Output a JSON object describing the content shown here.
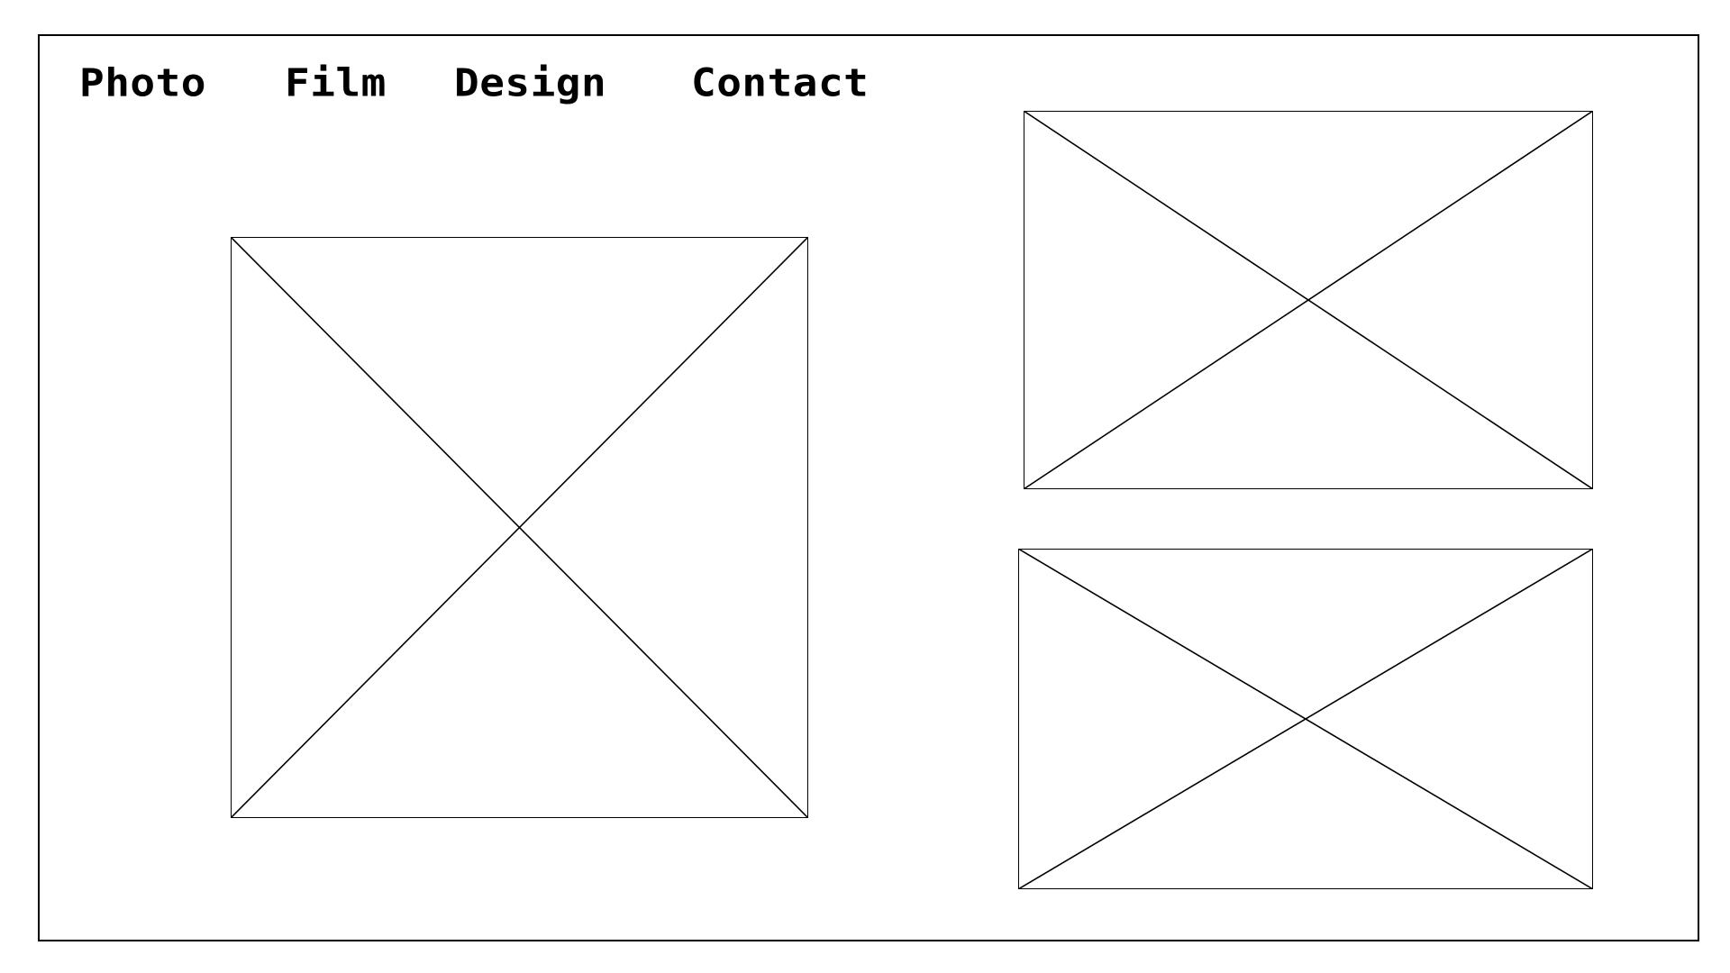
{
  "nav": {
    "items": [
      {
        "label": "Photo"
      },
      {
        "label": "Film"
      },
      {
        "label": "Design"
      },
      {
        "label": "Contact"
      }
    ]
  },
  "placeholders": [
    {
      "icon": "image-placeholder-icon"
    },
    {
      "icon": "image-placeholder-icon"
    },
    {
      "icon": "image-placeholder-icon"
    }
  ],
  "colors": {
    "background": "#ffffff",
    "stroke": "#000000"
  }
}
